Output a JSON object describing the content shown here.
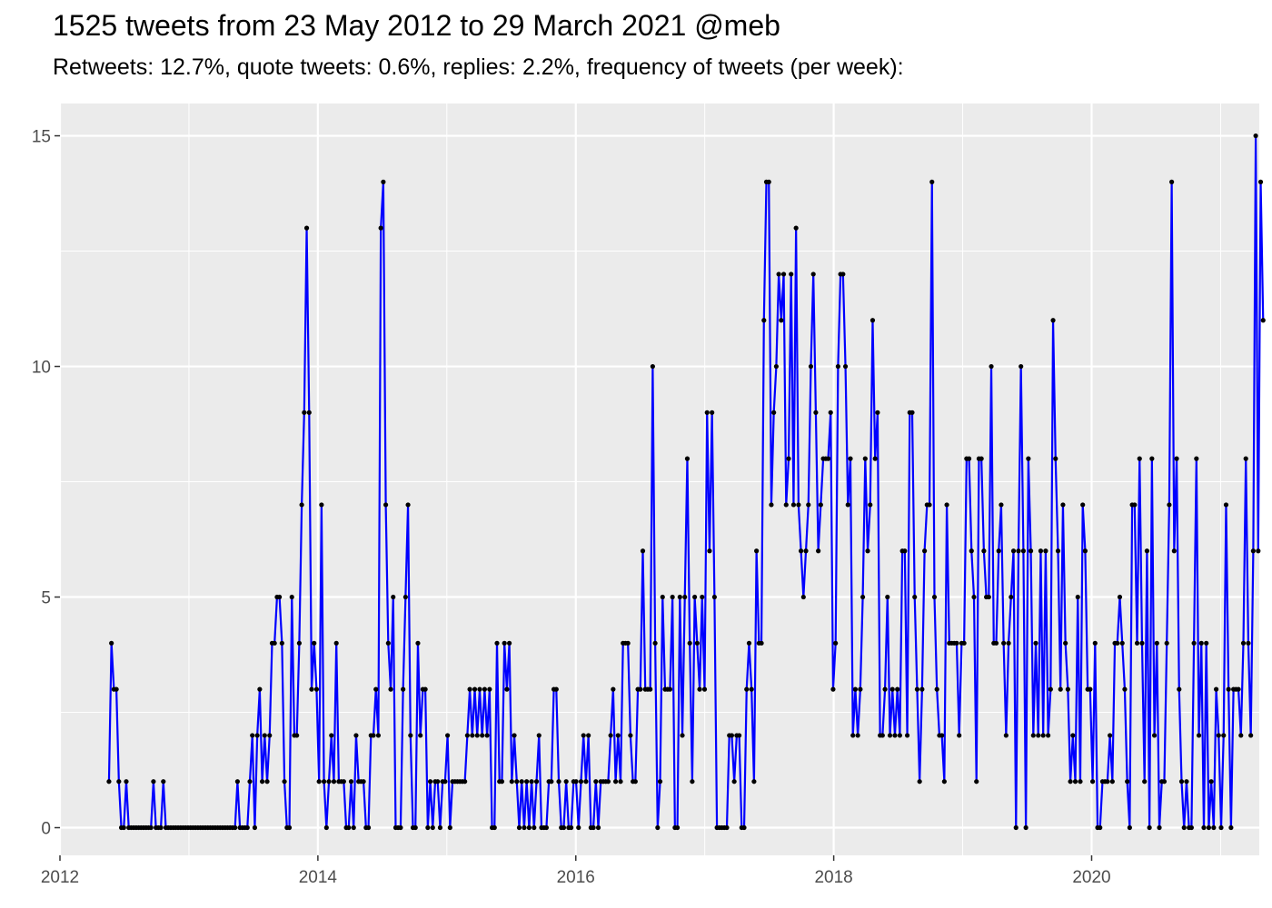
{
  "title": "1525 tweets from 23 May 2012 to 29 March 2021 @meb",
  "subtitle": "Retweets: 12.7%, quote tweets: 0.6%, replies: 2.2%, frequency of tweets (per week):",
  "chart_data": {
    "type": "line",
    "xlabel": "",
    "ylabel": "",
    "x_ticks": [
      "2012",
      "2014",
      "2016",
      "2018",
      "2020"
    ],
    "y_ticks": [
      "0",
      "5",
      "10",
      "15"
    ],
    "xlim": [
      2012.0,
      2021.3
    ],
    "ylim": [
      -0.6,
      15.7
    ],
    "grid": true,
    "legend": "none",
    "colors": {
      "line": "#0000ff",
      "point": "#000000",
      "panel": "#ebebeb",
      "grid": "#ffffff",
      "axis_text": "#4d4d4d"
    },
    "series": [
      {
        "x_start": 2012.38,
        "x_step_weeks": 1,
        "values": [
          1,
          4,
          3,
          3,
          1,
          0,
          0,
          1,
          0,
          0,
          0,
          0,
          0,
          0,
          0,
          0,
          0,
          0,
          1,
          0,
          0,
          0,
          1,
          0,
          0,
          0,
          0,
          0,
          0,
          0,
          0,
          0,
          0,
          0,
          0,
          0,
          0,
          0,
          0,
          0,
          0,
          0,
          0,
          0,
          0,
          0,
          0,
          0,
          0,
          0,
          0,
          0,
          1,
          0,
          0,
          0,
          0,
          1,
          2,
          0,
          2,
          3,
          1,
          2,
          1,
          2,
          4,
          4,
          5,
          5,
          4,
          1,
          0,
          0,
          5,
          2,
          2,
          4,
          7,
          9,
          13,
          9,
          3,
          4,
          3,
          1,
          7,
          1,
          0,
          1,
          2,
          1,
          4,
          1,
          1,
          1,
          0,
          0,
          1,
          0,
          2,
          1,
          1,
          1,
          0,
          0,
          2,
          2,
          3,
          2,
          13,
          14,
          7,
          4,
          3,
          5,
          0,
          0,
          0,
          3,
          5,
          7,
          2,
          0,
          0,
          4,
          2,
          3,
          3,
          0,
          1,
          0,
          1,
          1,
          0,
          1,
          1,
          2,
          0,
          1,
          1,
          1,
          1,
          1,
          1,
          2,
          3,
          2,
          3,
          2,
          3,
          2,
          3,
          2,
          3,
          0,
          0,
          4,
          1,
          1,
          4,
          3,
          4,
          1,
          2,
          1,
          0,
          1,
          0,
          1,
          0,
          1,
          0,
          1,
          2,
          0,
          0,
          0,
          1,
          1,
          3,
          3,
          1,
          0,
          0,
          1,
          0,
          0,
          1,
          1,
          0,
          1,
          2,
          1,
          2,
          0,
          0,
          1,
          0,
          1,
          1,
          1,
          1,
          2,
          3,
          1,
          2,
          1,
          4,
          4,
          4,
          2,
          1,
          1,
          3,
          3,
          6,
          3,
          3,
          3,
          10,
          4,
          0,
          1,
          5,
          3,
          3,
          3,
          5,
          0,
          0,
          5,
          2,
          5,
          8,
          4,
          1,
          5,
          4,
          3,
          5,
          3,
          9,
          6,
          9,
          5,
          0,
          0,
          0,
          0,
          0,
          2,
          2,
          1,
          2,
          2,
          0,
          0,
          3,
          4,
          3,
          1,
          6,
          4,
          4,
          11,
          14,
          14,
          7,
          9,
          10,
          12,
          11,
          12,
          7,
          8,
          12,
          7,
          13,
          7,
          6,
          5,
          6,
          7,
          10,
          12,
          9,
          6,
          7,
          8,
          8,
          8,
          9,
          3,
          4,
          10,
          12,
          12,
          10,
          7,
          8,
          2,
          3,
          2,
          3,
          5,
          8,
          6,
          7,
          11,
          8,
          9,
          2,
          2,
          3,
          5,
          2,
          3,
          2,
          3,
          2,
          6,
          6,
          2,
          9,
          9,
          5,
          3,
          1,
          3,
          6,
          7,
          7,
          14,
          5,
          3,
          2,
          2,
          1,
          7,
          4,
          4,
          4,
          4,
          2,
          4,
          4,
          8,
          8,
          6,
          5,
          1,
          8,
          8,
          6,
          5,
          5,
          10,
          4,
          4,
          6,
          7,
          4,
          2,
          4,
          5,
          6,
          0,
          6,
          10,
          6,
          0,
          8,
          6,
          2,
          4,
          2,
          6,
          2,
          6,
          2,
          3,
          11,
          8,
          6,
          3,
          7,
          4,
          3,
          1,
          2,
          1,
          5,
          1,
          7,
          6,
          3,
          3,
          1,
          4,
          0,
          0,
          1,
          1,
          1,
          2,
          1,
          4,
          4,
          5,
          4,
          3,
          1,
          0,
          7,
          7,
          4,
          8,
          4,
          1,
          6,
          0,
          8,
          2,
          4,
          0,
          1,
          1,
          4,
          7,
          14,
          6,
          8,
          3,
          1,
          0,
          1,
          0,
          0,
          4,
          8,
          2,
          4,
          0,
          4,
          0,
          1,
          0,
          3,
          2,
          0,
          2,
          7,
          3,
          0,
          3,
          3,
          3,
          2,
          4,
          8,
          4,
          2,
          6,
          15,
          6,
          14,
          11
        ]
      }
    ]
  }
}
